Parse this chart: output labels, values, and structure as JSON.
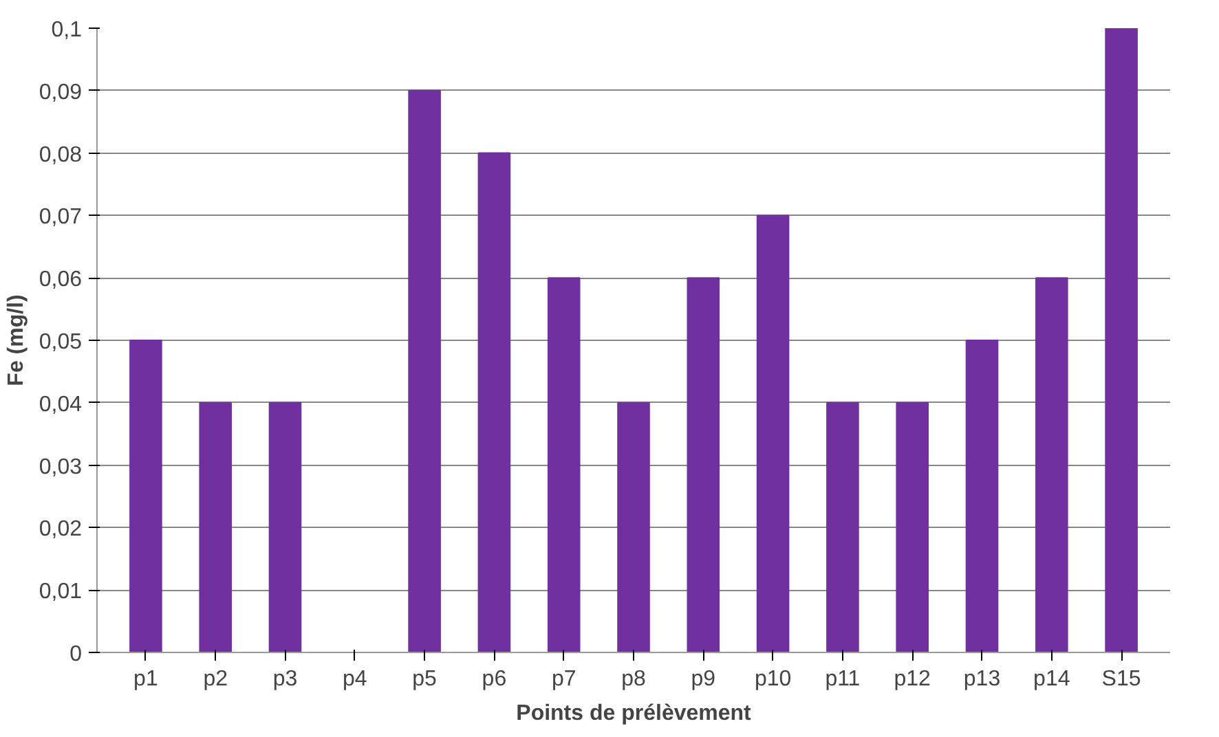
{
  "chart_data": {
    "type": "bar",
    "xlabel": "Points de prélèvement",
    "ylabel": "Fe (mg/l)",
    "categories": [
      "p1",
      "p2",
      "p3",
      "p4",
      "p5",
      "p6",
      "p7",
      "p8",
      "p9",
      "p10",
      "p11",
      "p12",
      "p13",
      "p14",
      "S15"
    ],
    "values": [
      0.05,
      0.04,
      0.04,
      0.0,
      0.09,
      0.08,
      0.06,
      0.04,
      0.06,
      0.07,
      0.04,
      0.04,
      0.05,
      0.06,
      0.1
    ],
    "color": "#7030a0",
    "ylim": [
      0,
      0.1
    ],
    "yticks": [
      0,
      {
        "value": 0.01,
        "label": "0,01"
      },
      {
        "value": 0.02,
        "label": "0,02"
      },
      {
        "value": 0.03,
        "label": "0,03"
      },
      {
        "value": 0.04,
        "label": "0,04"
      },
      {
        "value": 0.05,
        "label": "0,05"
      },
      {
        "value": 0.06,
        "label": "0,06"
      },
      {
        "value": 0.07,
        "label": "0,07"
      },
      {
        "value": 0.08,
        "label": "0,08"
      },
      {
        "value": 0.09,
        "label": "0,09"
      },
      {
        "value": 0.1,
        "label": "0,1"
      }
    ],
    "grid": "y"
  }
}
